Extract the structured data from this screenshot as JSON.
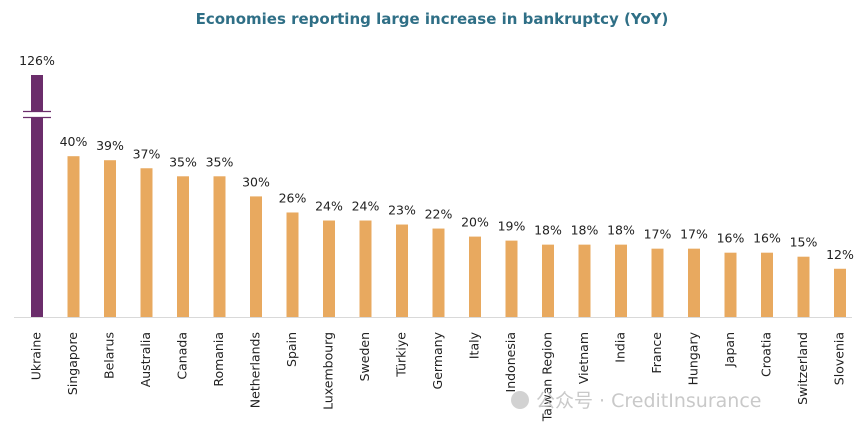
{
  "chart_data": {
    "type": "bar",
    "title": "Economies reporting large increase in bankruptcy (YoY)",
    "xlabel": "",
    "ylabel": "",
    "ylim": [
      0,
      45
    ],
    "axis_break": true,
    "grid": false,
    "categories": [
      "Ukraine",
      "Singapore",
      "Belarus",
      "Australia",
      "Canada",
      "Romania",
      "Netherlands",
      "Spain",
      "Luxembourg",
      "Sweden",
      "Türkiye",
      "Germany",
      "Italy",
      "Indonesia",
      "Taiwan Region",
      "Vietnam",
      "India",
      "France",
      "Hungary",
      "Japan",
      "Croatia",
      "Switzerland",
      "Slovenia"
    ],
    "values": [
      126,
      40,
      39,
      37,
      35,
      35,
      30,
      26,
      24,
      24,
      23,
      22,
      20,
      19,
      18,
      18,
      18,
      17,
      17,
      16,
      16,
      15,
      12
    ],
    "value_labels": [
      "126%",
      "40%",
      "39%",
      "37%",
      "35%",
      "35%",
      "30%",
      "26%",
      "24%",
      "24%",
      "23%",
      "22%",
      "20%",
      "19%",
      "18%",
      "18%",
      "18%",
      "17%",
      "17%",
      "16%",
      "16%",
      "15%",
      "12%"
    ],
    "colors": {
      "highlight": "#6b2d6b",
      "default": "#e8a95f",
      "title": "#2f6f86"
    }
  },
  "watermark": "公众号 · CreditInsurance"
}
